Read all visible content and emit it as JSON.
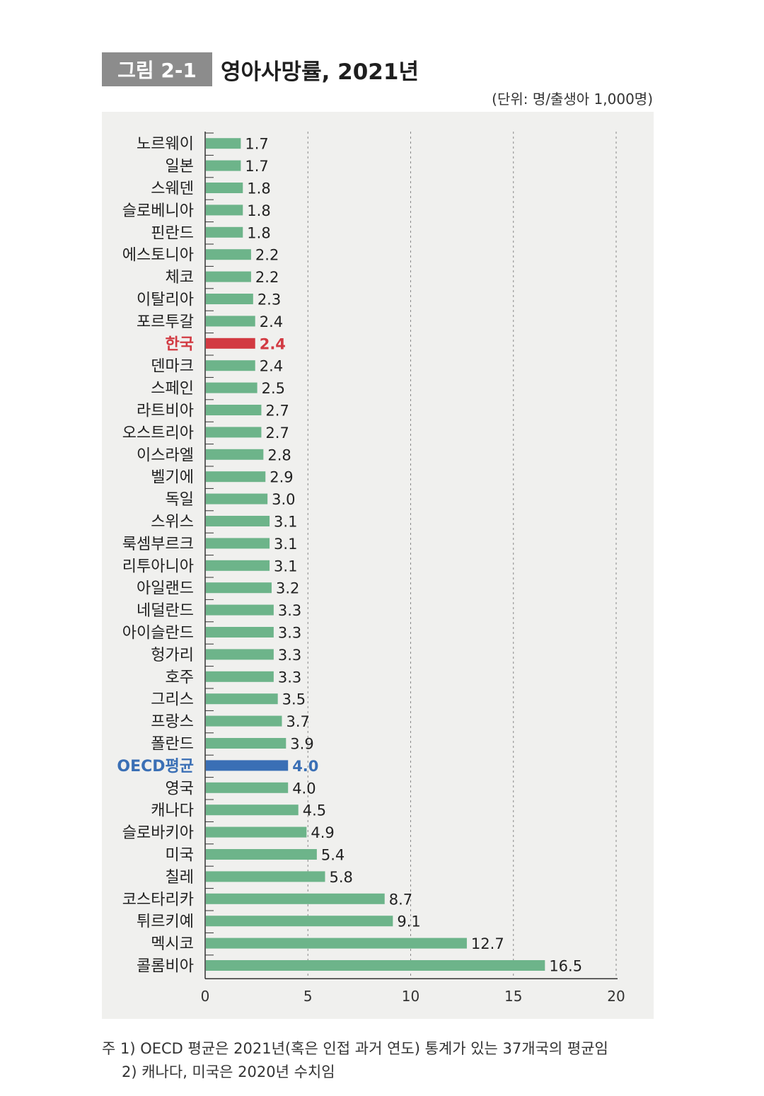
{
  "figure": {
    "label": "그림 2-1",
    "title": "영아사망률, 2021년",
    "unit": "(단위: 명/출생아 1,000명)"
  },
  "colors": {
    "default_bar": "#6db48a",
    "highlight_korea": "#d23a42",
    "highlight_oecd": "#3a6fb5",
    "panel_bg": "#f0f0ee"
  },
  "chart_data": {
    "type": "bar",
    "orientation": "horizontal",
    "xlim": [
      0,
      20
    ],
    "xticks": [
      0,
      5,
      10,
      15,
      20
    ],
    "grid": "vertical dashed",
    "categories": [
      "노르웨이",
      "일본",
      "스웨덴",
      "슬로베니아",
      "핀란드",
      "에스토니아",
      "체코",
      "이탈리아",
      "포르투갈",
      "한국",
      "덴마크",
      "스페인",
      "라트비아",
      "오스트리아",
      "이스라엘",
      "벨기에",
      "독일",
      "스위스",
      "룩셈부르크",
      "리투아니아",
      "아일랜드",
      "네덜란드",
      "아이슬란드",
      "헝가리",
      "호주",
      "그리스",
      "프랑스",
      "폴란드",
      "OECD평균",
      "영국",
      "캐나다",
      "슬로바키아",
      "미국",
      "칠레",
      "코스타리카",
      "튀르키예",
      "멕시코",
      "콜롬비아"
    ],
    "values": [
      1.7,
      1.7,
      1.8,
      1.8,
      1.8,
      2.2,
      2.2,
      2.3,
      2.4,
      2.4,
      2.4,
      2.5,
      2.7,
      2.7,
      2.8,
      2.9,
      3.0,
      3.1,
      3.1,
      3.1,
      3.2,
      3.3,
      3.3,
      3.3,
      3.3,
      3.5,
      3.7,
      3.9,
      4.0,
      4.0,
      4.5,
      4.9,
      5.4,
      5.8,
      8.7,
      9.1,
      12.7,
      16.5
    ],
    "value_labels": [
      "1.7",
      "1.7",
      "1.8",
      "1.8",
      "1.8",
      "2.2",
      "2.2",
      "2.3",
      "2.4",
      "2.4",
      "2.4",
      "2.5",
      "2.7",
      "2.7",
      "2.8",
      "2.9",
      "3.0",
      "3.1",
      "3.1",
      "3.1",
      "3.2",
      "3.3",
      "3.3",
      "3.3",
      "3.3",
      "3.5",
      "3.7",
      "3.9",
      "4.0",
      "4.0",
      "4.5",
      "4.9",
      "5.4",
      "5.8",
      "8.7",
      "9.1",
      "12.7",
      "16.5"
    ],
    "highlight": {
      "한국": "korea",
      "OECD평균": "oecd"
    }
  },
  "notes": [
    "주 1) OECD 평균은 2021년(혹은 인접 과거 연도) 통계가 있는 37개국의 평균임",
    "2) 캐나다, 미국은 2020년 수치임"
  ]
}
